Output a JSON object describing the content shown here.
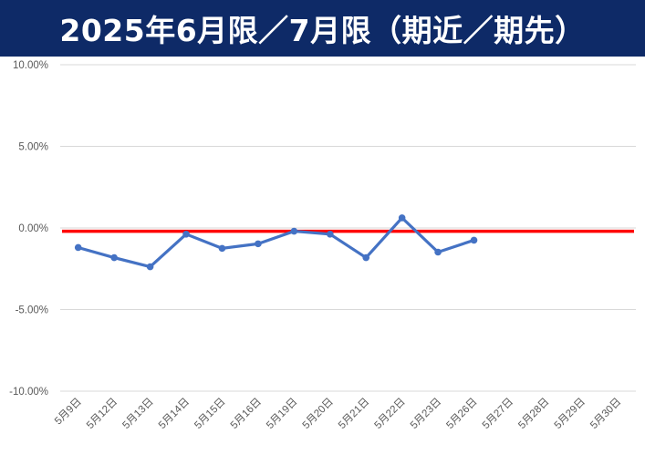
{
  "chart_data": {
    "type": "line",
    "title": "2025年6月限／7月限（期近／期先）",
    "xlabel": "",
    "ylabel": "",
    "categories": [
      "5月9日",
      "5月12日",
      "5月13日",
      "5月14日",
      "5月15日",
      "5月16日",
      "5月19日",
      "5月20日",
      "5月21日",
      "5月22日",
      "5月23日",
      "5月26日",
      "5月27日",
      "5月28日",
      "5月29日",
      "5月30日"
    ],
    "series": [
      {
        "values": [
          -1.2,
          -1.82,
          -2.38,
          -0.38,
          -1.25,
          -0.97,
          -0.2,
          -0.38,
          -1.82,
          0.62,
          -1.48,
          -0.75,
          null,
          null,
          null,
          null
        ],
        "color": "#4472c4"
      }
    ],
    "reference_line": {
      "value": -0.2,
      "color": "#ff0000"
    },
    "ylim": [
      -10,
      10
    ],
    "yticks": [
      "10.00%",
      "5.00%",
      "0.00%",
      "-5.00%",
      "-10.00%"
    ],
    "ytick_values": [
      10,
      5,
      0,
      -5,
      -10
    ],
    "grid": true,
    "legend": "none",
    "colors": {
      "title_bg": "#0e2a67",
      "title_text": "#ffffff",
      "grid": "#d9d9d9",
      "tick_text": "#595959"
    }
  }
}
